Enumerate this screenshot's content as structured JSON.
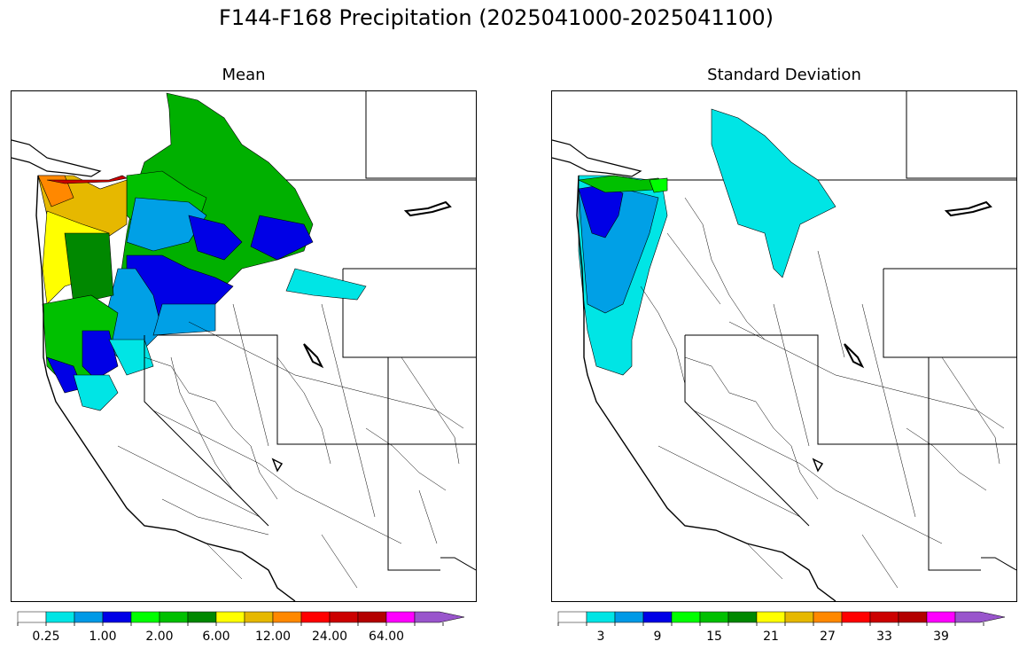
{
  "title": "F144-F168 Precipitation (2025041000-2025041100)",
  "panels": [
    {
      "id": "mean",
      "title": "Mean",
      "colorbar": {
        "colors": [
          "#ffffff",
          "#00e5e5",
          "#0099e6",
          "#0000e6",
          "#00ff00",
          "#00c000",
          "#008800",
          "#ffff00",
          "#e6b800",
          "#ff8800",
          "#ff0000",
          "#cc0000",
          "#b30000",
          "#ff00ff",
          "#9955cc"
        ],
        "tick_labels": [
          "0.25",
          "1.00",
          "2.00",
          "6.00",
          "12.00",
          "24.00",
          "64.00"
        ],
        "labeled_boundaries": [
          1,
          3,
          5,
          7,
          9,
          11,
          13
        ]
      }
    },
    {
      "id": "stddev",
      "title": "Standard Deviation",
      "colorbar": {
        "colors": [
          "#ffffff",
          "#00e5e5",
          "#0099e6",
          "#0000e6",
          "#00ff00",
          "#00c000",
          "#008800",
          "#ffff00",
          "#e6b800",
          "#ff8800",
          "#ff0000",
          "#cc0000",
          "#b30000",
          "#ff00ff",
          "#9955cc"
        ],
        "tick_labels": [
          "3",
          "9",
          "15",
          "21",
          "27",
          "33",
          "39"
        ],
        "labeled_centers": [
          1,
          3,
          5,
          7,
          9,
          11,
          13
        ]
      }
    }
  ]
}
